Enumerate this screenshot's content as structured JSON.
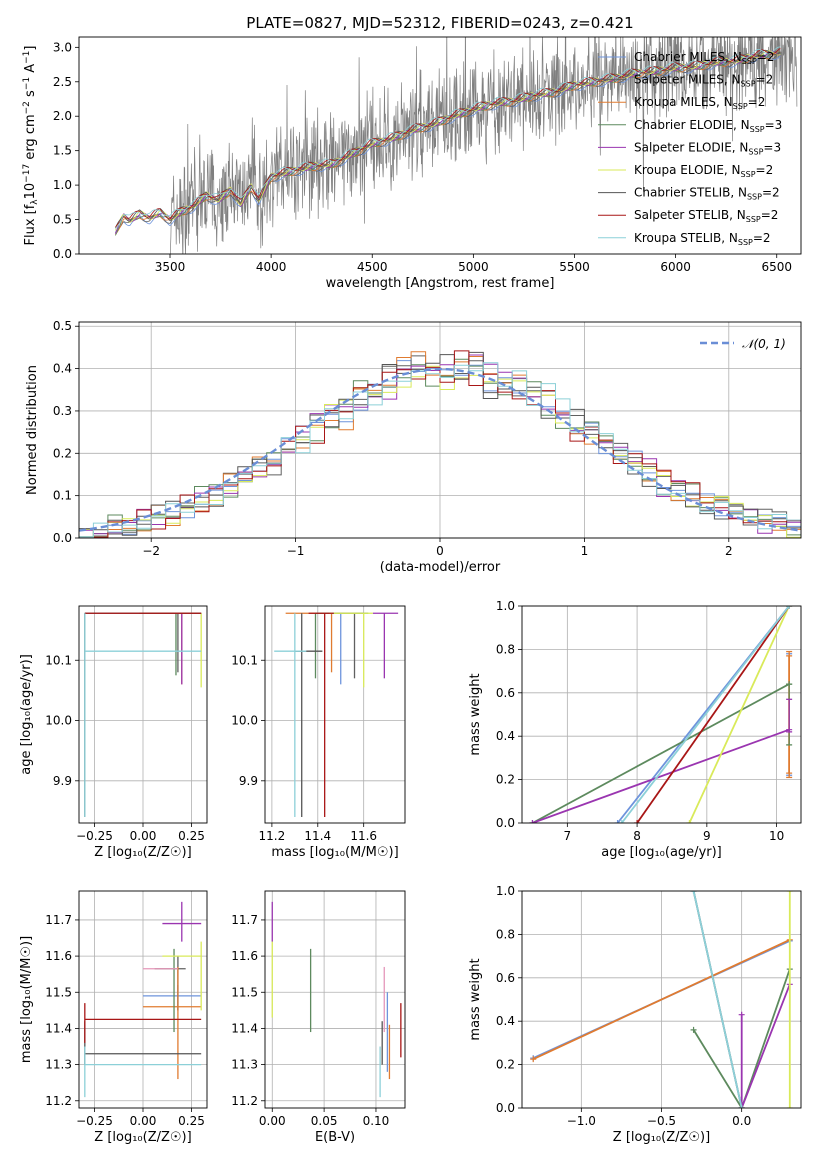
{
  "figure": {
    "title": "PLATE=0827, MJD=52312, FIBERID=0243, z=0.421"
  },
  "colors": {
    "Chabrier MILES": "#6e94dc",
    "Salpeter MILES": "#606060",
    "Kroupa MILES": "#e07b30",
    "Chabrier ELODIE": "#5d8a5e",
    "Salpeter ELODIE": "#9a35b0",
    "Kroupa ELODIE": "#d9ea5a",
    "Chabrier STELIB": "#555555",
    "Salpeter STELIB": "#a81616",
    "Kroupa STELIB": "#8cd0d8",
    "data": "#7f7f7f",
    "gaussian": "#6a8ed6",
    "pink": "#e597b9"
  },
  "chart_data": [
    {
      "type": "line",
      "id": "spectrum",
      "xlabel": "wavelength [Angstrom, rest frame]",
      "ylabel_parts": {
        "a": "Flux [f",
        "sub": "λ",
        "b": "10",
        "sup1": "−17",
        "c": " erg cm",
        "sup2": "−2",
        "d": " s",
        "sup3": "−1",
        "e": " A",
        "sup4": "−1",
        "f": "]"
      },
      "xlim": [
        3050,
        6620
      ],
      "ylim": [
        0,
        3.15
      ],
      "xticks": [
        3500,
        4000,
        4500,
        5000,
        5500,
        6000,
        6500
      ],
      "yticks": [
        0.0,
        0.5,
        1.0,
        1.5,
        2.0,
        2.5,
        3.0
      ],
      "legend": [
        {
          "name": "Chabrier MILES",
          "nssp": "2"
        },
        {
          "name": "Salpeter MILES",
          "nssp": "2"
        },
        {
          "name": "Kroupa MILES",
          "nssp": "2"
        },
        {
          "name": "Chabrier ELODIE",
          "nssp": "3"
        },
        {
          "name": "Salpeter ELODIE",
          "nssp": "3"
        },
        {
          "name": "Kroupa ELODIE",
          "nssp": "2"
        },
        {
          "name": "Chabrier STELIB",
          "nssp": "2"
        },
        {
          "name": "Salpeter STELIB",
          "nssp": "2"
        },
        {
          "name": "Kroupa STELIB",
          "nssp": "2"
        }
      ],
      "legend_placement": "top-right",
      "nssp_label": "N",
      "nssp_sub": "SSP",
      "model_knots": [
        [
          3230,
          0.32
        ],
        [
          3270,
          0.55
        ],
        [
          3300,
          0.48
        ],
        [
          3350,
          0.58
        ],
        [
          3400,
          0.52
        ],
        [
          3450,
          0.6
        ],
        [
          3500,
          0.5
        ],
        [
          3560,
          0.62
        ],
        [
          3620,
          0.7
        ],
        [
          3680,
          0.85
        ],
        [
          3740,
          0.78
        ],
        [
          3800,
          0.93
        ],
        [
          3850,
          0.72
        ],
        [
          3900,
          0.98
        ],
        [
          3940,
          0.78
        ],
        [
          4000,
          1.12
        ],
        [
          4100,
          1.2
        ],
        [
          4200,
          1.27
        ],
        [
          4300,
          1.3
        ],
        [
          4400,
          1.45
        ],
        [
          4500,
          1.6
        ],
        [
          4600,
          1.68
        ],
        [
          4700,
          1.8
        ],
        [
          4800,
          1.88
        ],
        [
          4900,
          2.0
        ],
        [
          5000,
          2.1
        ],
        [
          5100,
          2.18
        ],
        [
          5200,
          2.22
        ],
        [
          5300,
          2.3
        ],
        [
          5400,
          2.35
        ],
        [
          5500,
          2.45
        ],
        [
          5600,
          2.5
        ],
        [
          5700,
          2.55
        ],
        [
          5800,
          2.62
        ],
        [
          5900,
          2.65
        ],
        [
          6000,
          2.7
        ],
        [
          6100,
          2.72
        ],
        [
          6200,
          2.78
        ],
        [
          6300,
          2.8
        ],
        [
          6400,
          2.88
        ],
        [
          6520,
          2.92
        ]
      ],
      "data_range": [
        3500,
        6600
      ],
      "data_noise": 0.55
    },
    {
      "type": "line",
      "id": "residuals",
      "xlabel": "(data-model)/error",
      "ylabel": "Normed distribution",
      "xlim": [
        -2.5,
        2.5
      ],
      "ylim": [
        0,
        0.51
      ],
      "xticks": [
        -2,
        -1,
        0,
        1,
        2
      ],
      "xticklabels": [
        "−2",
        "−1",
        "0",
        "1",
        "2"
      ],
      "yticks": [
        0.0,
        0.1,
        0.2,
        0.3,
        0.4,
        0.5
      ],
      "legend_label": "𝒩(0, 1)",
      "legend_placement": "top-right",
      "gaussian": {
        "mu": 0,
        "sigma": 1
      },
      "bin_width": 0.1
    },
    {
      "type": "scatter",
      "id": "z-age",
      "xlabel": "Z [log₁₀(Z/Z☉)]",
      "ylabel": "age  [log₁₀(age/yr)]",
      "xlim": [
        -0.33,
        0.33
      ],
      "ylim": [
        9.83,
        10.19
      ],
      "xticks": [
        -0.25,
        0.0,
        0.25
      ],
      "xticklabels": [
        "−0.25",
        "0.00",
        "0.25"
      ],
      "yticks": [
        9.9,
        10.0,
        10.1
      ],
      "yticklabels": [
        "9.9",
        "10.0",
        "10.1"
      ],
      "points": [
        {
          "s": "Chabrier MILES",
          "x": 0.3,
          "xl": 0.27,
          "xh": 0.3,
          "y": 10.178,
          "yl": 10.178,
          "yh": 10.178
        },
        {
          "s": "Salpeter MILES",
          "x": 0.18,
          "xl": 0.18,
          "xh": 0.18,
          "y": 10.178,
          "yl": 10.08,
          "yh": 10.178
        },
        {
          "s": "Kroupa MILES",
          "x": 0.2,
          "xl": -0.02,
          "xh": 0.3,
          "y": 10.178,
          "yl": 10.06,
          "yh": 10.178
        },
        {
          "s": "Chabrier ELODIE",
          "x": 0.17,
          "xl": 0.17,
          "xh": 0.17,
          "y": 10.178,
          "yl": 10.075,
          "yh": 10.178
        },
        {
          "s": "Salpeter ELODIE",
          "x": 0.2,
          "xl": 0.2,
          "xh": 0.2,
          "y": 10.178,
          "yl": 10.06,
          "yh": 10.178
        },
        {
          "s": "Kroupa ELODIE",
          "x": 0.3,
          "xl": 0.3,
          "xh": 0.3,
          "y": 10.178,
          "yl": 10.055,
          "yh": 10.178
        },
        {
          "s": "Chabrier STELIB",
          "x": -0.3,
          "xl": -0.3,
          "xh": 0.3,
          "y": 10.178,
          "yl": 9.84,
          "yh": 10.178
        },
        {
          "s": "Salpeter STELIB",
          "x": -0.3,
          "xl": -0.3,
          "xh": 0.3,
          "y": 10.178,
          "yl": 10.178,
          "yh": 10.178
        },
        {
          "s": "Kroupa STELIB",
          "x": -0.3,
          "xl": -0.3,
          "xh": 0.3,
          "y": 10.115,
          "yl": 9.84,
          "yh": 10.178
        }
      ]
    },
    {
      "type": "scatter",
      "id": "mass-age",
      "xlabel": "mass [log₁₀(M/M☉)]",
      "xlim": [
        11.17,
        11.78
      ],
      "ylim": [
        9.83,
        10.19
      ],
      "xticks": [
        11.2,
        11.4,
        11.6
      ],
      "xticklabels": [
        "11.2",
        "11.4",
        "11.6"
      ],
      "yticks": [
        9.9,
        10.0,
        10.1
      ],
      "yticklabels": [
        "9.9",
        "10.0",
        "10.1"
      ],
      "points": [
        {
          "s": "Chabrier MILES",
          "x": 11.5,
          "xl": 11.45,
          "xh": 11.52,
          "y": 10.178,
          "yl": 10.06,
          "yh": 10.178
        },
        {
          "s": "Salpeter MILES",
          "x": 11.56,
          "xl": 11.45,
          "xh": 11.6,
          "y": 10.178,
          "yl": 10.07,
          "yh": 10.178
        },
        {
          "s": "Kroupa MILES",
          "x": 11.46,
          "xl": 11.26,
          "xh": 11.57,
          "y": 10.178,
          "yl": 10.08,
          "yh": 10.178
        },
        {
          "s": "Chabrier ELODIE",
          "x": 11.39,
          "xl": 11.39,
          "xh": 11.62,
          "y": 10.178,
          "yl": 10.07,
          "yh": 10.178
        },
        {
          "s": "Salpeter ELODIE",
          "x": 11.69,
          "xl": 11.64,
          "xh": 11.75,
          "y": 10.178,
          "yl": 10.07,
          "yh": 10.178
        },
        {
          "s": "Kroupa ELODIE",
          "x": 11.6,
          "xl": 11.45,
          "xh": 11.64,
          "y": 10.178,
          "yl": 10.055,
          "yh": 10.178
        },
        {
          "s": "Chabrier STELIB",
          "x": 11.33,
          "xl": 11.3,
          "xh": 11.42,
          "y": 10.115,
          "yl": 9.84,
          "yh": 10.178
        },
        {
          "s": "Salpeter STELIB",
          "x": 11.43,
          "xl": 11.36,
          "xh": 11.47,
          "y": 10.178,
          "yl": 9.84,
          "yh": 10.178
        },
        {
          "s": "Kroupa STELIB",
          "x": 11.3,
          "xl": 11.21,
          "xh": 11.35,
          "y": 10.115,
          "yl": 9.84,
          "yh": 10.178
        }
      ]
    },
    {
      "type": "line",
      "id": "age-massweight",
      "xlabel": "age  [log₁₀(age/yr)]",
      "ylabel": "mass weight",
      "xlim": [
        6.35,
        10.35
      ],
      "ylim": [
        0,
        1
      ],
      "xticks": [
        7,
        8,
        9,
        10
      ],
      "yticks": [
        0.0,
        0.2,
        0.4,
        0.6,
        0.8,
        1.0
      ],
      "series": [
        {
          "s": "Chabrier MILES",
          "pts": [
            [
              7.72,
              0.0
            ],
            [
              10.18,
              1.0
            ]
          ],
          "err": [
            [
              10.18,
              0.22,
              0.78
            ]
          ]
        },
        {
          "s": "Kroupa MILES",
          "pts": [
            [
              10.18,
              0.23
            ],
            [
              10.18,
              0.77
            ]
          ],
          "err": [
            [
              10.18,
              0.21,
              0.79
            ]
          ]
        },
        {
          "s": "Chabrier ELODIE",
          "pts": [
            [
              6.5,
              0.0
            ],
            [
              10.18,
              0.64
            ]
          ],
          "err": [
            [
              10.18,
              0.36,
              0.64
            ]
          ]
        },
        {
          "s": "Salpeter ELODIE",
          "pts": [
            [
              6.5,
              0.0
            ],
            [
              10.18,
              0.43
            ]
          ],
          "err": [
            [
              10.18,
              0.42,
              0.57
            ]
          ]
        },
        {
          "s": "Kroupa ELODIE",
          "pts": [
            [
              8.75,
              0.0
            ],
            [
              10.18,
              1.0
            ]
          ],
          "err": []
        },
        {
          "s": "Salpeter STELIB",
          "pts": [
            [
              8.0,
              0.0
            ],
            [
              10.18,
              1.0
            ]
          ],
          "err": []
        },
        {
          "s": "Kroupa STELIB",
          "pts": [
            [
              7.78,
              0.0
            ],
            [
              10.18,
              1.0
            ]
          ],
          "err": []
        }
      ]
    },
    {
      "type": "scatter",
      "id": "z-mass",
      "xlabel": "Z [log₁₀(Z/Z☉)]",
      "ylabel": "mass [log₁₀(M/M☉)]",
      "xlim": [
        -0.33,
        0.33
      ],
      "ylim": [
        11.18,
        11.78
      ],
      "xticks": [
        -0.25,
        0.0,
        0.25
      ],
      "xticklabels": [
        "−0.25",
        "0.00",
        "0.25"
      ],
      "yticks": [
        11.2,
        11.3,
        11.4,
        11.5,
        11.6,
        11.7
      ],
      "yticklabels": [
        "11.2",
        "11.3",
        "11.4",
        "11.5",
        "11.6",
        "11.7"
      ],
      "points": [
        {
          "s": "Chabrier MILES",
          "x": 0.18,
          "xl": 0.0,
          "xh": 0.3,
          "y": 11.49,
          "yl": 11.45,
          "yh": 11.52
        },
        {
          "s": "Salpeter MILES",
          "x": 0.18,
          "xl": 0.06,
          "xh": 0.22,
          "y": 11.565,
          "yl": 11.45,
          "yh": 11.6
        },
        {
          "s": "Kroupa MILES",
          "x": 0.18,
          "xl": 0.0,
          "xh": 0.3,
          "y": 11.46,
          "yl": 11.26,
          "yh": 11.57
        },
        {
          "s": "Chabrier ELODIE",
          "x": 0.16,
          "xl": 0.16,
          "xh": 0.16,
          "y": 11.39,
          "yl": 11.39,
          "yh": 11.62
        },
        {
          "s": "Salpeter ELODIE",
          "x": 0.2,
          "xl": 0.1,
          "xh": 0.3,
          "y": 11.69,
          "yl": 11.64,
          "yh": 11.75
        },
        {
          "s": "Kroupa ELODIE",
          "x": 0.3,
          "xl": 0.1,
          "xh": 0.3,
          "y": 11.6,
          "yl": 11.45,
          "yh": 11.64
        },
        {
          "s": "Chabrier STELIB",
          "x": -0.3,
          "xl": -0.3,
          "xh": 0.3,
          "y": 11.33,
          "yl": 11.3,
          "yh": 11.42
        },
        {
          "s": "Salpeter STELIB",
          "x": -0.3,
          "xl": -0.3,
          "xh": 0.3,
          "y": 11.425,
          "yl": 11.36,
          "yh": 11.47
        },
        {
          "s": "Kroupa STELIB",
          "x": -0.3,
          "xl": -0.3,
          "xh": 0.3,
          "y": 11.3,
          "yl": 11.21,
          "yh": 11.35
        },
        {
          "s": "pink",
          "x": 0.0,
          "xl": 0.0,
          "xh": 0.18,
          "y": 11.565,
          "yl": 11.565,
          "yh": 11.565
        }
      ]
    },
    {
      "type": "scatter",
      "id": "ebv-mass",
      "xlabel": "E(B-V)",
      "xlim": [
        -0.007,
        0.128
      ],
      "ylim": [
        11.18,
        11.78
      ],
      "xticks": [
        0.0,
        0.05,
        0.1
      ],
      "xticklabels": [
        "0.00",
        "0.05",
        "0.10"
      ],
      "yticks": [
        11.2,
        11.3,
        11.4,
        11.5,
        11.6,
        11.7
      ],
      "yticklabels": [
        "11.2",
        "11.3",
        "11.4",
        "11.5",
        "11.6",
        "11.7"
      ],
      "points": [
        {
          "s": "Salpeter ELODIE",
          "x": 0.0,
          "yl": 11.64,
          "yh": 11.75
        },
        {
          "s": "Kroupa ELODIE",
          "x": 0.0,
          "yl": 11.43,
          "yh": 11.64
        },
        {
          "s": "Chabrier ELODIE",
          "x": 0.037,
          "yl": 11.39,
          "yh": 11.62
        },
        {
          "s": "Kroupa STELIB",
          "x": 0.104,
          "yl": 11.21,
          "yh": 11.35
        },
        {
          "s": "Chabrier STELIB",
          "x": 0.106,
          "yl": 11.3,
          "yh": 11.42
        },
        {
          "s": "pink",
          "x": 0.108,
          "yl": 11.39,
          "yh": 11.57
        },
        {
          "s": "Chabrier MILES",
          "x": 0.111,
          "yl": 11.28,
          "yh": 11.5
        },
        {
          "s": "Kroupa MILES",
          "x": 0.113,
          "yl": 11.26,
          "yh": 11.41
        },
        {
          "s": "Salpeter STELIB",
          "x": 0.124,
          "yl": 11.32,
          "yh": 11.47
        }
      ]
    },
    {
      "type": "line",
      "id": "z-massweight",
      "xlabel": "Z [log₁₀(Z/Z☉)]",
      "ylabel": "mass weight",
      "xlim": [
        -1.37,
        0.37
      ],
      "ylim": [
        0,
        1
      ],
      "xticks": [
        -1.0,
        -0.5,
        0.0
      ],
      "xticklabels": [
        "−1.0",
        "−0.5",
        "0.0"
      ],
      "yticks": [
        0.0,
        0.2,
        0.4,
        0.6,
        0.8,
        1.0
      ],
      "series": [
        {
          "s": "Chabrier MILES",
          "pts": [
            [
              -1.3,
              0.23
            ],
            [
              0.3,
              0.77
            ]
          ],
          "err": []
        },
        {
          "s": "Kroupa MILES",
          "pts": [
            [
              -1.3,
              0.225
            ],
            [
              0.3,
              0.775
            ]
          ],
          "err": []
        },
        {
          "s": "Chabrier ELODIE",
          "pts": [
            [
              -0.3,
              0.36
            ],
            [
              0.0,
              0.0
            ],
            [
              0.3,
              0.64
            ]
          ],
          "err": []
        },
        {
          "s": "Salpeter ELODIE",
          "pts": [
            [
              0.0,
              0.43
            ],
            [
              0.0,
              0.0
            ],
            [
              0.3,
              0.57
            ]
          ],
          "err": []
        },
        {
          "s": "Kroupa ELODIE",
          "pts": [
            [
              0.3,
              0.0
            ],
            [
              0.3,
              1.0
            ]
          ],
          "err": []
        },
        {
          "s": "Chabrier STELIB",
          "pts": [
            [
              -0.3,
              1.0
            ],
            [
              0.0,
              0.0
            ]
          ],
          "err": []
        },
        {
          "s": "Kroupa STELIB",
          "pts": [
            [
              -0.3,
              1.0
            ],
            [
              0.0,
              0.0
            ]
          ],
          "err": []
        }
      ]
    }
  ]
}
